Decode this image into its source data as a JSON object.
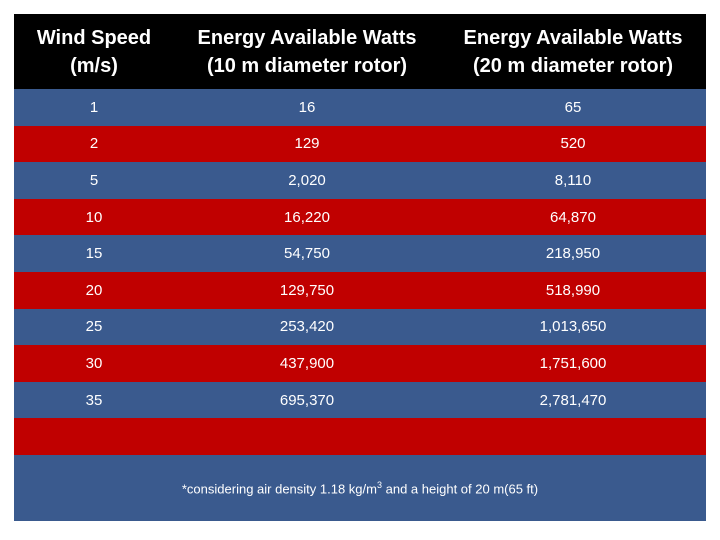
{
  "header": {
    "col1": [
      "Wind Speed",
      "(m/s)"
    ],
    "col2": [
      "Energy Available Watts",
      "(10 m diameter rotor)"
    ],
    "col3": [
      "Energy Available Watts",
      "(20 m diameter rotor)"
    ]
  },
  "rows": [
    {
      "speed": "1",
      "e10": "16",
      "e20": "65"
    },
    {
      "speed": "2",
      "e10": "129",
      "e20": "520"
    },
    {
      "speed": "5",
      "e10": "2,020",
      "e20": "8,110"
    },
    {
      "speed": "10",
      "e10": "16,220",
      "e20": "64,870"
    },
    {
      "speed": "15",
      "e10": "54,750",
      "e20": "218,950"
    },
    {
      "speed": "20",
      "e10": "129,750",
      "e20": "518,990"
    },
    {
      "speed": "25",
      "e10": "253,420",
      "e20": "1,013,650"
    },
    {
      "speed": "30",
      "e10": "437,900",
      "e20": "1,751,600"
    },
    {
      "speed": "35",
      "e10": "695,370",
      "e20": "2,781,470"
    }
  ],
  "footnote": {
    "before": "*considering  air density 1.18 kg/m",
    "sup": "3",
    "after": " and a height of 20 m(65 ft)"
  },
  "colors": {
    "header_bg": "#000000",
    "row_blue": "#3a5a8e",
    "row_red": "#c00000",
    "text": "#ffffff"
  }
}
